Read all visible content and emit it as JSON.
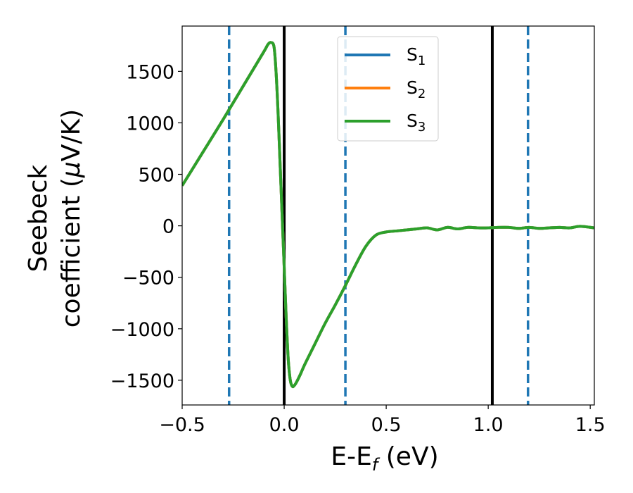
{
  "chart_data": {
    "type": "line",
    "xlabel": {
      "main": "E-E",
      "sub": "f",
      "tail": " (eV)"
    },
    "ylabel": {
      "line1": "Seebeck",
      "line2_pre": "coefficient  (",
      "line2_mu": "μ",
      "line2_post": "V/K)"
    },
    "xlim": [
      -0.5,
      1.52
    ],
    "ylim": [
      -1740,
      1940
    ],
    "xticks": [
      -0.5,
      0.0,
      0.5,
      1.0,
      1.5
    ],
    "xtick_labels": [
      "−0.5",
      "0.0",
      "0.5",
      "1.0",
      "1.5"
    ],
    "yticks": [
      -1500,
      -1000,
      -500,
      0,
      500,
      1000,
      1500
    ],
    "ytick_labels": [
      "−1500",
      "−1000",
      "−500",
      "0",
      "500",
      "1000",
      "1500"
    ],
    "grid": false,
    "legend_position": "top-center",
    "legend": [
      {
        "base": "S",
        "sub": "1",
        "color": "#1f77b4"
      },
      {
        "base": "S",
        "sub": "2",
        "color": "#ff7f0e"
      },
      {
        "base": "S",
        "sub": "3",
        "color": "#2ca02c"
      }
    ],
    "vlines_solid": [
      0.0,
      1.02
    ],
    "vlines_dashed": [
      -0.27,
      0.3,
      1.195
    ],
    "series": [
      {
        "name": "S1",
        "color": "#1f77b4",
        "x": [
          -0.5,
          -0.4,
          -0.3,
          -0.2,
          -0.1,
          -0.08,
          -0.065,
          -0.05,
          -0.04,
          -0.03,
          -0.02,
          -0.01,
          0.0,
          0.01,
          0.02,
          0.03,
          0.04,
          0.05,
          0.06,
          0.08,
          0.1,
          0.15,
          0.2,
          0.25,
          0.3,
          0.35,
          0.4,
          0.45,
          0.5,
          0.55,
          0.6,
          0.65,
          0.7,
          0.75,
          0.8,
          0.85,
          0.9,
          0.95,
          1.0,
          1.05,
          1.1,
          1.15,
          1.2,
          1.25,
          1.3,
          1.35,
          1.4,
          1.45,
          1.52
        ],
        "y": [
          390,
          710,
          1030,
          1360,
          1690,
          1760,
          1780,
          1740,
          1500,
          1100,
          600,
          100,
          -400,
          -900,
          -1300,
          -1500,
          -1560,
          -1550,
          -1520,
          -1440,
          -1350,
          -1150,
          -950,
          -770,
          -580,
          -380,
          -200,
          -90,
          -60,
          -50,
          -40,
          -30,
          -20,
          -40,
          -15,
          -30,
          -15,
          -20,
          -20,
          -15,
          -15,
          -25,
          -15,
          -25,
          -20,
          -15,
          -20,
          -5,
          -20
        ]
      },
      {
        "name": "S2",
        "color": "#ff7f0e",
        "x": [
          -0.5,
          -0.4,
          -0.3,
          -0.2,
          -0.1,
          -0.08,
          -0.065,
          -0.05,
          -0.04,
          -0.03,
          -0.02,
          -0.01,
          0.0,
          0.01,
          0.02,
          0.03,
          0.04,
          0.05,
          0.06,
          0.08,
          0.1,
          0.15,
          0.2,
          0.25,
          0.3,
          0.35,
          0.4,
          0.45,
          0.5,
          0.55,
          0.6,
          0.65,
          0.7,
          0.75,
          0.8,
          0.85,
          0.9,
          0.95,
          1.0,
          1.05,
          1.1,
          1.15,
          1.2,
          1.25,
          1.3,
          1.35,
          1.4,
          1.45,
          1.52
        ],
        "y": [
          390,
          710,
          1030,
          1360,
          1690,
          1760,
          1780,
          1740,
          1500,
          1100,
          600,
          100,
          -400,
          -900,
          -1300,
          -1500,
          -1560,
          -1550,
          -1520,
          -1440,
          -1350,
          -1150,
          -950,
          -770,
          -580,
          -380,
          -200,
          -90,
          -60,
          -50,
          -40,
          -30,
          -20,
          -40,
          -15,
          -30,
          -15,
          -20,
          -20,
          -15,
          -15,
          -25,
          -15,
          -25,
          -20,
          -15,
          -20,
          -5,
          -20
        ]
      },
      {
        "name": "S3",
        "color": "#2ca02c",
        "x": [
          -0.5,
          -0.4,
          -0.3,
          -0.2,
          -0.1,
          -0.08,
          -0.065,
          -0.05,
          -0.04,
          -0.03,
          -0.02,
          -0.01,
          0.0,
          0.01,
          0.02,
          0.03,
          0.04,
          0.05,
          0.06,
          0.08,
          0.1,
          0.15,
          0.2,
          0.25,
          0.3,
          0.35,
          0.4,
          0.45,
          0.5,
          0.55,
          0.6,
          0.65,
          0.7,
          0.75,
          0.8,
          0.85,
          0.9,
          0.95,
          1.0,
          1.05,
          1.1,
          1.15,
          1.2,
          1.25,
          1.3,
          1.35,
          1.4,
          1.45,
          1.52
        ],
        "y": [
          390,
          710,
          1030,
          1360,
          1690,
          1760,
          1780,
          1740,
          1500,
          1100,
          600,
          100,
          -400,
          -900,
          -1300,
          -1500,
          -1560,
          -1550,
          -1520,
          -1440,
          -1350,
          -1150,
          -950,
          -770,
          -580,
          -380,
          -200,
          -90,
          -60,
          -50,
          -40,
          -30,
          -20,
          -40,
          -15,
          -30,
          -15,
          -20,
          -20,
          -15,
          -15,
          -25,
          -15,
          -25,
          -20,
          -15,
          -20,
          -5,
          -20
        ]
      }
    ]
  }
}
